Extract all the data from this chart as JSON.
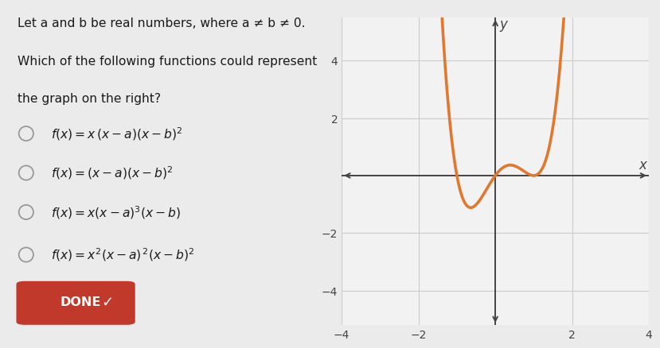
{
  "done_button_color": "#c0392b",
  "done_text_color": "#ffffff",
  "curve_color": "#e07830",
  "background_color": "#ebebeb",
  "graph_background": "#f2f2f2",
  "grid_color": "#cccccc",
  "axis_color": "#444444",
  "text_color": "#1a1a1a",
  "a_val": -1.0,
  "b_val": 1.0,
  "scale_factor": 1.8,
  "xmin": -4,
  "xmax": 4,
  "ymin": -5.2,
  "ymax": 5.5,
  "x_ticks": [
    -4,
    -2,
    2,
    4
  ],
  "y_ticks": [
    -4,
    -2,
    2,
    4
  ],
  "curve_linewidth": 2.6,
  "title_line1": "Let a and b be real numbers, where a ≠ b ≠ 0.",
  "title_line2": "Which of the following functions could represent",
  "title_line3": "the graph on the right?",
  "option1": "f(x) = x (x – a)(x – b)²",
  "option2": "f(x) = (x – a)(x – b)²",
  "option3": "f(x) = x(x – a)³(x – b)",
  "option4": "f(x) = x²(x – a) ²(x – b)²",
  "option1_math": "$f(x)=x\\,(x-a)(x-b)^2$",
  "option2_math": "$f(x)=(x-a)(x-b)^2$",
  "option3_math": "$f(x)=x(x-a)^3(x-b)$",
  "option4_math": "$f(x)=x^2(x-a)^{\\,2}(x-b)^2$"
}
